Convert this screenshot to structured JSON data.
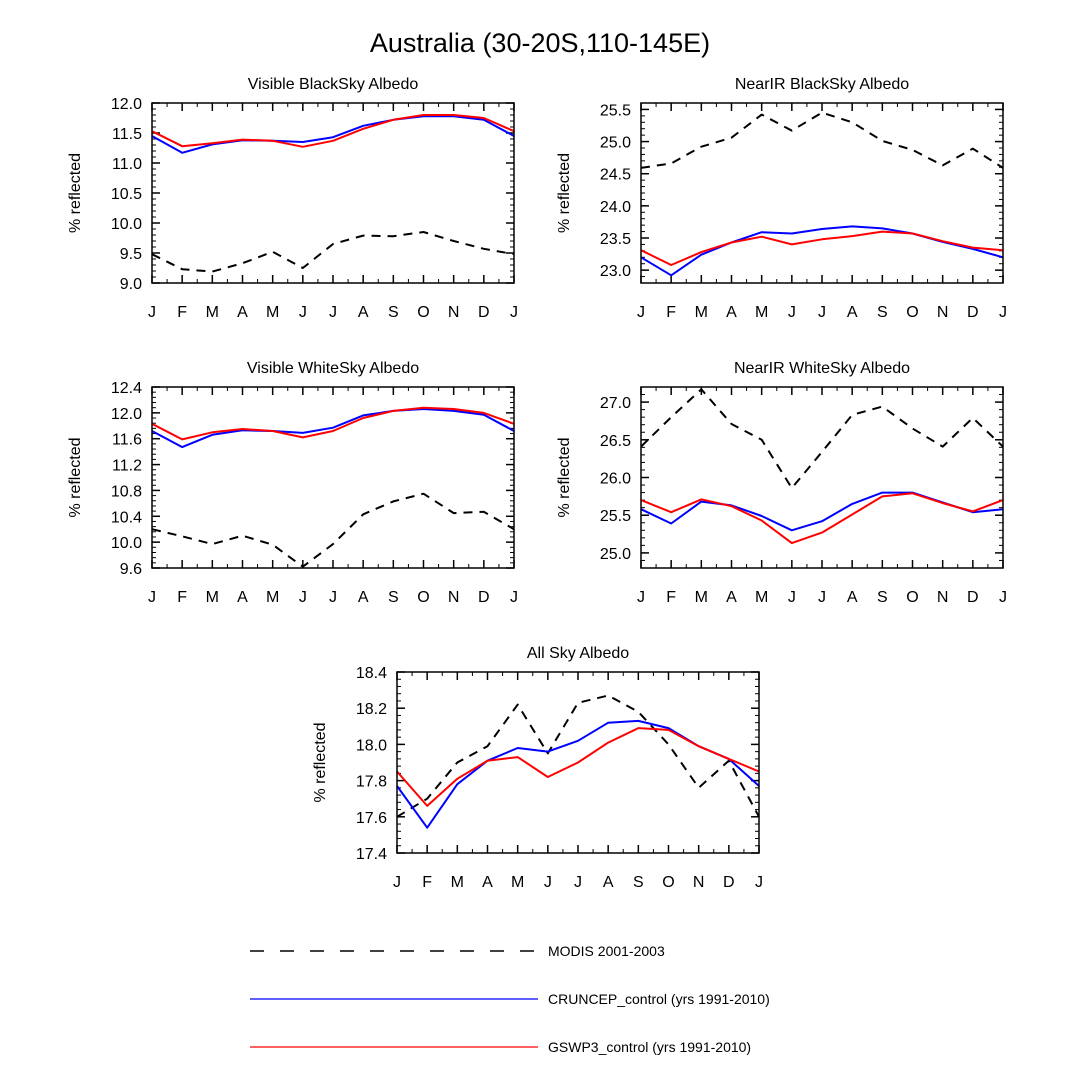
{
  "title": "Australia (30-20S,110-145E)",
  "legend": [
    {
      "label": "MODIS 2001-2003",
      "color": "#000000",
      "dash": true
    },
    {
      "label": "CRUNCEP_control (yrs 1991-2010)",
      "color": "#0000ff",
      "dash": false
    },
    {
      "label": "GSWP3_control (yrs 1991-2010)",
      "color": "#ff0000",
      "dash": false
    }
  ],
  "chart_data": [
    {
      "type": "line",
      "title": "Visible BlackSky Albedo",
      "xlabel": "",
      "ylabel": "% reflected",
      "categories": [
        "J",
        "F",
        "M",
        "A",
        "M",
        "J",
        "J",
        "A",
        "S",
        "O",
        "N",
        "D",
        "J"
      ],
      "ylim": [
        9.0,
        12.0
      ],
      "yticks": [
        9.0,
        9.5,
        10.0,
        10.5,
        11.0,
        11.5,
        12.0
      ],
      "ydecimals": 1,
      "series": [
        {
          "name": "MODIS 2001-2003",
          "values": [
            9.48,
            9.23,
            9.19,
            9.33,
            9.52,
            9.25,
            9.65,
            9.79,
            9.78,
            9.85,
            9.7,
            9.57,
            9.48
          ]
        },
        {
          "name": "CRUNCEP_control (yrs 1991-2010)",
          "values": [
            11.45,
            11.17,
            11.31,
            11.38,
            11.37,
            11.35,
            11.43,
            11.62,
            11.72,
            11.78,
            11.78,
            11.72,
            11.45
          ]
        },
        {
          "name": "GSWP3_control (yrs 1991-2010)",
          "values": [
            11.53,
            11.28,
            11.33,
            11.39,
            11.37,
            11.27,
            11.37,
            11.57,
            11.72,
            11.8,
            11.8,
            11.75,
            11.53
          ]
        }
      ]
    },
    {
      "type": "line",
      "title": "NearIR BlackSky Albedo",
      "xlabel": "",
      "ylabel": "% reflected",
      "categories": [
        "J",
        "F",
        "M",
        "A",
        "M",
        "J",
        "J",
        "A",
        "S",
        "O",
        "N",
        "D",
        "J"
      ],
      "ylim": [
        22.8,
        25.6
      ],
      "yticks": [
        23.0,
        23.5,
        24.0,
        24.5,
        25.0,
        25.5
      ],
      "ydecimals": 1,
      "series": [
        {
          "name": "MODIS 2001-2003",
          "values": [
            24.59,
            24.66,
            24.92,
            25.06,
            25.42,
            25.17,
            25.45,
            25.3,
            25.01,
            24.87,
            24.63,
            24.89,
            24.59
          ]
        },
        {
          "name": "CRUNCEP_control (yrs 1991-2010)",
          "values": [
            23.2,
            22.92,
            23.24,
            23.43,
            23.59,
            23.57,
            23.64,
            23.68,
            23.65,
            23.57,
            23.44,
            23.33,
            23.2
          ]
        },
        {
          "name": "GSWP3_control (yrs 1991-2010)",
          "values": [
            23.31,
            23.08,
            23.28,
            23.43,
            23.52,
            23.4,
            23.48,
            23.53,
            23.6,
            23.57,
            23.45,
            23.35,
            23.31
          ]
        }
      ]
    },
    {
      "type": "line",
      "title": "Visible WhiteSky Albedo",
      "xlabel": "",
      "ylabel": "% reflected",
      "categories": [
        "J",
        "F",
        "M",
        "A",
        "M",
        "J",
        "J",
        "A",
        "S",
        "O",
        "N",
        "D",
        "J"
      ],
      "ylim": [
        9.6,
        12.4
      ],
      "yticks": [
        9.6,
        10.0,
        10.4,
        10.8,
        11.2,
        11.6,
        12.0,
        12.4
      ],
      "ydecimals": 1,
      "series": [
        {
          "name": "MODIS 2001-2003",
          "values": [
            10.2,
            10.09,
            9.97,
            10.1,
            9.96,
            9.62,
            9.97,
            10.43,
            10.63,
            10.75,
            10.45,
            10.47,
            10.2
          ]
        },
        {
          "name": "CRUNCEP_control (yrs 1991-2010)",
          "values": [
            11.72,
            11.47,
            11.66,
            11.73,
            11.72,
            11.69,
            11.77,
            11.96,
            12.03,
            12.06,
            12.03,
            11.97,
            11.72
          ]
        },
        {
          "name": "GSWP3_control (yrs 1991-2010)",
          "values": [
            11.83,
            11.59,
            11.7,
            11.75,
            11.72,
            11.62,
            11.72,
            11.92,
            12.03,
            12.08,
            12.06,
            12.0,
            11.83
          ]
        }
      ]
    },
    {
      "type": "line",
      "title": "NearIR WhiteSky Albedo",
      "xlabel": "",
      "ylabel": "% reflected",
      "categories": [
        "J",
        "F",
        "M",
        "A",
        "M",
        "J",
        "J",
        "A",
        "S",
        "O",
        "N",
        "D",
        "J"
      ],
      "ylim": [
        24.8,
        27.2
      ],
      "yticks": [
        25.0,
        25.5,
        26.0,
        26.5,
        27.0
      ],
      "ydecimals": 1,
      "series": [
        {
          "name": "MODIS 2001-2003",
          "values": [
            26.41,
            26.8,
            27.17,
            26.71,
            26.5,
            25.86,
            26.34,
            26.83,
            26.94,
            26.65,
            26.41,
            26.79,
            26.41
          ]
        },
        {
          "name": "CRUNCEP_control (yrs 1991-2010)",
          "values": [
            25.58,
            25.39,
            25.68,
            25.63,
            25.49,
            25.3,
            25.42,
            25.65,
            25.8,
            25.8,
            25.67,
            25.54,
            25.58
          ]
        },
        {
          "name": "GSWP3_control (yrs 1991-2010)",
          "values": [
            25.7,
            25.54,
            25.71,
            25.62,
            25.43,
            25.13,
            25.27,
            25.51,
            25.75,
            25.79,
            25.66,
            25.55,
            25.7
          ]
        }
      ]
    },
    {
      "type": "line",
      "title": "All Sky Albedo",
      "xlabel": "",
      "ylabel": "% reflected",
      "categories": [
        "J",
        "F",
        "M",
        "A",
        "M",
        "J",
        "J",
        "A",
        "S",
        "O",
        "N",
        "D",
        "J"
      ],
      "ylim": [
        17.4,
        18.4
      ],
      "yticks": [
        17.4,
        17.6,
        17.8,
        18.0,
        18.2,
        18.4
      ],
      "ydecimals": 1,
      "series": [
        {
          "name": "MODIS 2001-2003",
          "values": [
            17.6,
            17.7,
            17.9,
            17.99,
            18.22,
            17.95,
            18.23,
            18.27,
            18.18,
            18.0,
            17.76,
            17.91,
            17.6
          ]
        },
        {
          "name": "CRUNCEP_control (yrs 1991-2010)",
          "values": [
            17.77,
            17.54,
            17.78,
            17.91,
            17.98,
            17.96,
            18.02,
            18.12,
            18.13,
            18.09,
            17.99,
            17.92,
            17.77
          ]
        },
        {
          "name": "GSWP3_control (yrs 1991-2010)",
          "values": [
            17.85,
            17.66,
            17.81,
            17.91,
            17.93,
            17.82,
            17.9,
            18.01,
            18.09,
            18.08,
            17.99,
            17.92,
            17.85
          ]
        }
      ]
    }
  ]
}
